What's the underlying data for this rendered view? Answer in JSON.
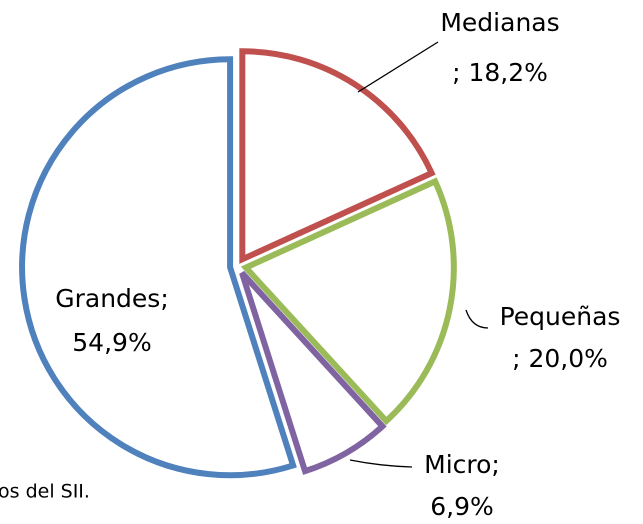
{
  "chart_data": {
    "type": "pie",
    "categories": [
      "Medianas",
      "Pequeñas",
      "Micro;",
      "Grandes;"
    ],
    "values": [
      18.2,
      20.0,
      6.9,
      54.9
    ],
    "value_labels": [
      "; 18,2%",
      "; 20,0%",
      "6,9%",
      "54,9%"
    ],
    "colors": [
      "#c0504d",
      "#9bbb59",
      "#8064a2",
      "#4f81bd"
    ],
    "note": "os del SII."
  }
}
